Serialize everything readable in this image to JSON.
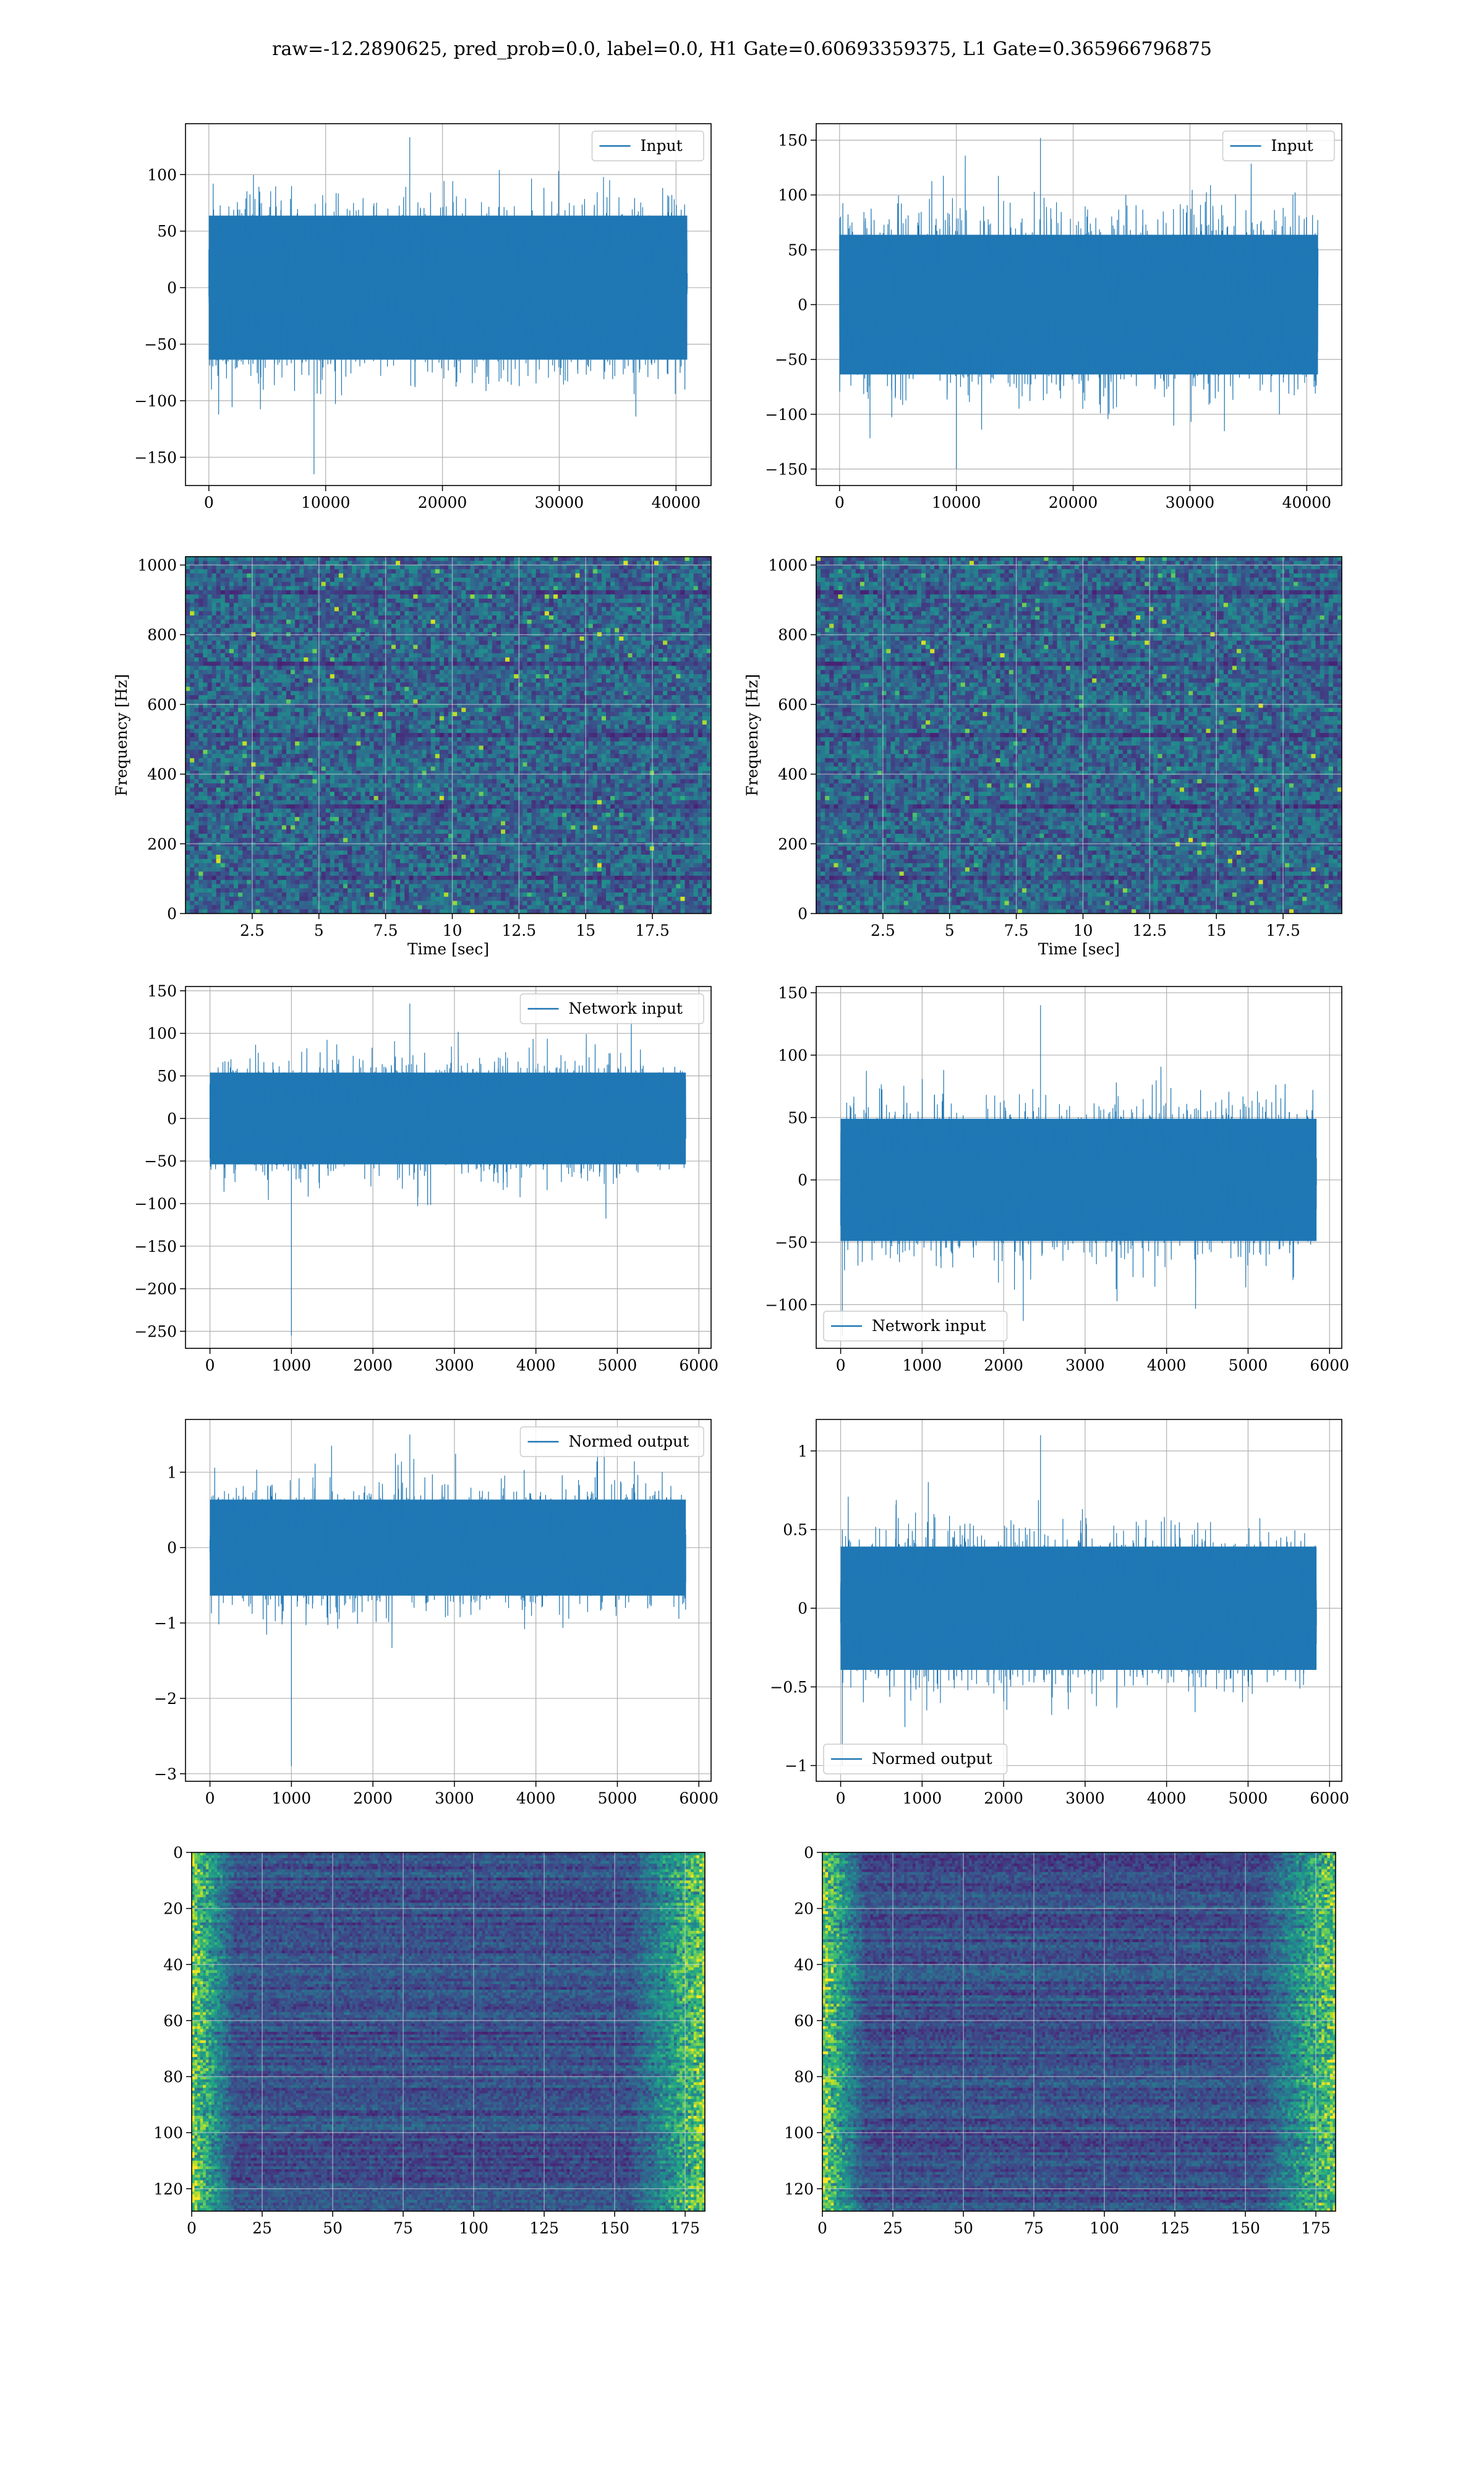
{
  "suptitle": "raw=-12.2890625, pred_prob=0.0, label=0.0, H1 Gate=0.60693359375, L1 Gate=0.365966796875",
  "colors": {
    "line": "#1f77b4",
    "grid": "#b0b0b0",
    "viridis_low": "#440154",
    "viridis_mid": "#3b528b",
    "viridis_high": "#fde725"
  },
  "chart_data": [
    {
      "id": "input-h1",
      "type": "line",
      "legend": "Input",
      "legend_loc": "upper right",
      "xlim": [
        -2000,
        43000
      ],
      "ylim": [
        -175,
        145
      ],
      "xticks": [
        0,
        10000,
        20000,
        30000,
        40000
      ],
      "yticks": [
        -150,
        -100,
        -50,
        0,
        50,
        100
      ],
      "series": [
        {
          "x_range": [
            0,
            40960
          ],
          "band": [
            -65,
            65
          ],
          "peak_max": 133,
          "peak_min": -165,
          "spike_x": 9000
        }
      ],
      "xlabel": "",
      "ylabel": "",
      "grid": true
    },
    {
      "id": "input-l1",
      "type": "line",
      "legend": "Input",
      "legend_loc": "upper right",
      "xlim": [
        -2000,
        43000
      ],
      "ylim": [
        -165,
        165
      ],
      "xticks": [
        0,
        10000,
        20000,
        30000,
        40000
      ],
      "yticks": [
        -150,
        -100,
        -50,
        0,
        50,
        100,
        150
      ],
      "series": [
        {
          "x_range": [
            0,
            40960
          ],
          "band": [
            -65,
            65
          ],
          "peak_max": 152,
          "peak_min": -150,
          "spike_x": 10000
        }
      ],
      "xlabel": "",
      "ylabel": "",
      "grid": true
    },
    {
      "id": "spec-h1",
      "type": "heatmap",
      "xlim": [
        0,
        19.7
      ],
      "ylim": [
        0,
        1024
      ],
      "xticks": [
        2.5,
        5.0,
        7.5,
        10.0,
        12.5,
        15.0,
        17.5
      ],
      "yticks": [
        0,
        200,
        400,
        600,
        800,
        1000
      ],
      "xlabel": "Time [sec]",
      "ylabel": "Frequency [Hz]",
      "grid": true
    },
    {
      "id": "spec-l1",
      "type": "heatmap",
      "xlim": [
        0,
        19.7
      ],
      "ylim": [
        0,
        1024
      ],
      "xticks": [
        2.5,
        5.0,
        7.5,
        10.0,
        12.5,
        15.0,
        17.5
      ],
      "yticks": [
        0,
        200,
        400,
        600,
        800,
        1000
      ],
      "xlabel": "Time [sec]",
      "ylabel": "Frequency [Hz]",
      "grid": true
    },
    {
      "id": "net-h1",
      "type": "line",
      "legend": "Network input",
      "legend_loc": "upper right",
      "xlim": [
        -300,
        6150
      ],
      "ylim": [
        -270,
        155
      ],
      "xticks": [
        0,
        1000,
        2000,
        3000,
        4000,
        5000,
        6000
      ],
      "yticks": [
        -250,
        -200,
        -150,
        -100,
        -50,
        0,
        50,
        100,
        150
      ],
      "series": [
        {
          "x_range": [
            0,
            5840
          ],
          "band": [
            -55,
            55
          ],
          "peak_max": 135,
          "peak_min": -255,
          "spike_x": 1000
        }
      ],
      "xlabel": "",
      "ylabel": "",
      "grid": true
    },
    {
      "id": "net-l1",
      "type": "line",
      "legend": "Network input",
      "legend_loc": "lower left",
      "xlim": [
        -300,
        6150
      ],
      "ylim": [
        -135,
        155
      ],
      "xticks": [
        0,
        1000,
        2000,
        3000,
        4000,
        5000,
        6000
      ],
      "yticks": [
        -100,
        -50,
        0,
        50,
        100,
        150
      ],
      "series": [
        {
          "x_range": [
            0,
            5840
          ],
          "band": [
            -50,
            50
          ],
          "peak_max": 140,
          "peak_min": -125,
          "spike_x": 20
        }
      ],
      "xlabel": "",
      "ylabel": "",
      "grid": true
    },
    {
      "id": "norm-h1",
      "type": "line",
      "legend": "Normed output",
      "legend_loc": "upper right",
      "xlim": [
        -300,
        6150
      ],
      "ylim": [
        -3.1,
        1.7
      ],
      "xticks": [
        0,
        1000,
        2000,
        3000,
        4000,
        5000,
        6000
      ],
      "yticks": [
        -3,
        -2,
        -1,
        0,
        1
      ],
      "series": [
        {
          "x_range": [
            0,
            5840
          ],
          "band": [
            -0.65,
            0.65
          ],
          "peak_max": 1.5,
          "peak_min": -2.9,
          "spike_x": 1000
        }
      ],
      "xlabel": "",
      "ylabel": "",
      "grid": true
    },
    {
      "id": "norm-l1",
      "type": "line",
      "legend": "Normed output",
      "legend_loc": "lower left",
      "xlim": [
        -300,
        6150
      ],
      "ylim": [
        -1.1,
        1.2
      ],
      "xticks": [
        0,
        1000,
        2000,
        3000,
        4000,
        5000,
        6000
      ],
      "yticks": [
        -1.0,
        -0.5,
        0.0,
        0.5,
        1.0
      ],
      "series": [
        {
          "x_range": [
            0,
            5840
          ],
          "band": [
            -0.4,
            0.4
          ],
          "peak_max": 1.1,
          "peak_min": -1.0,
          "spike_x": 20
        }
      ],
      "xlabel": "",
      "ylabel": "",
      "grid": true
    },
    {
      "id": "feat-h1",
      "type": "heatmap",
      "y_inverted": true,
      "xlim": [
        0,
        182
      ],
      "ylim": [
        0,
        128
      ],
      "xticks": [
        0,
        25,
        50,
        75,
        100,
        125,
        150,
        175
      ],
      "yticks": [
        0,
        20,
        40,
        60,
        80,
        100,
        120
      ],
      "xlabel": "",
      "ylabel": "",
      "grid": true
    },
    {
      "id": "feat-l1",
      "type": "heatmap",
      "y_inverted": true,
      "xlim": [
        0,
        182
      ],
      "ylim": [
        0,
        128
      ],
      "xticks": [
        0,
        25,
        50,
        75,
        100,
        125,
        150,
        175
      ],
      "yticks": [
        0,
        20,
        40,
        60,
        80,
        100,
        120
      ],
      "xlabel": "",
      "ylabel": "",
      "grid": true
    }
  ]
}
